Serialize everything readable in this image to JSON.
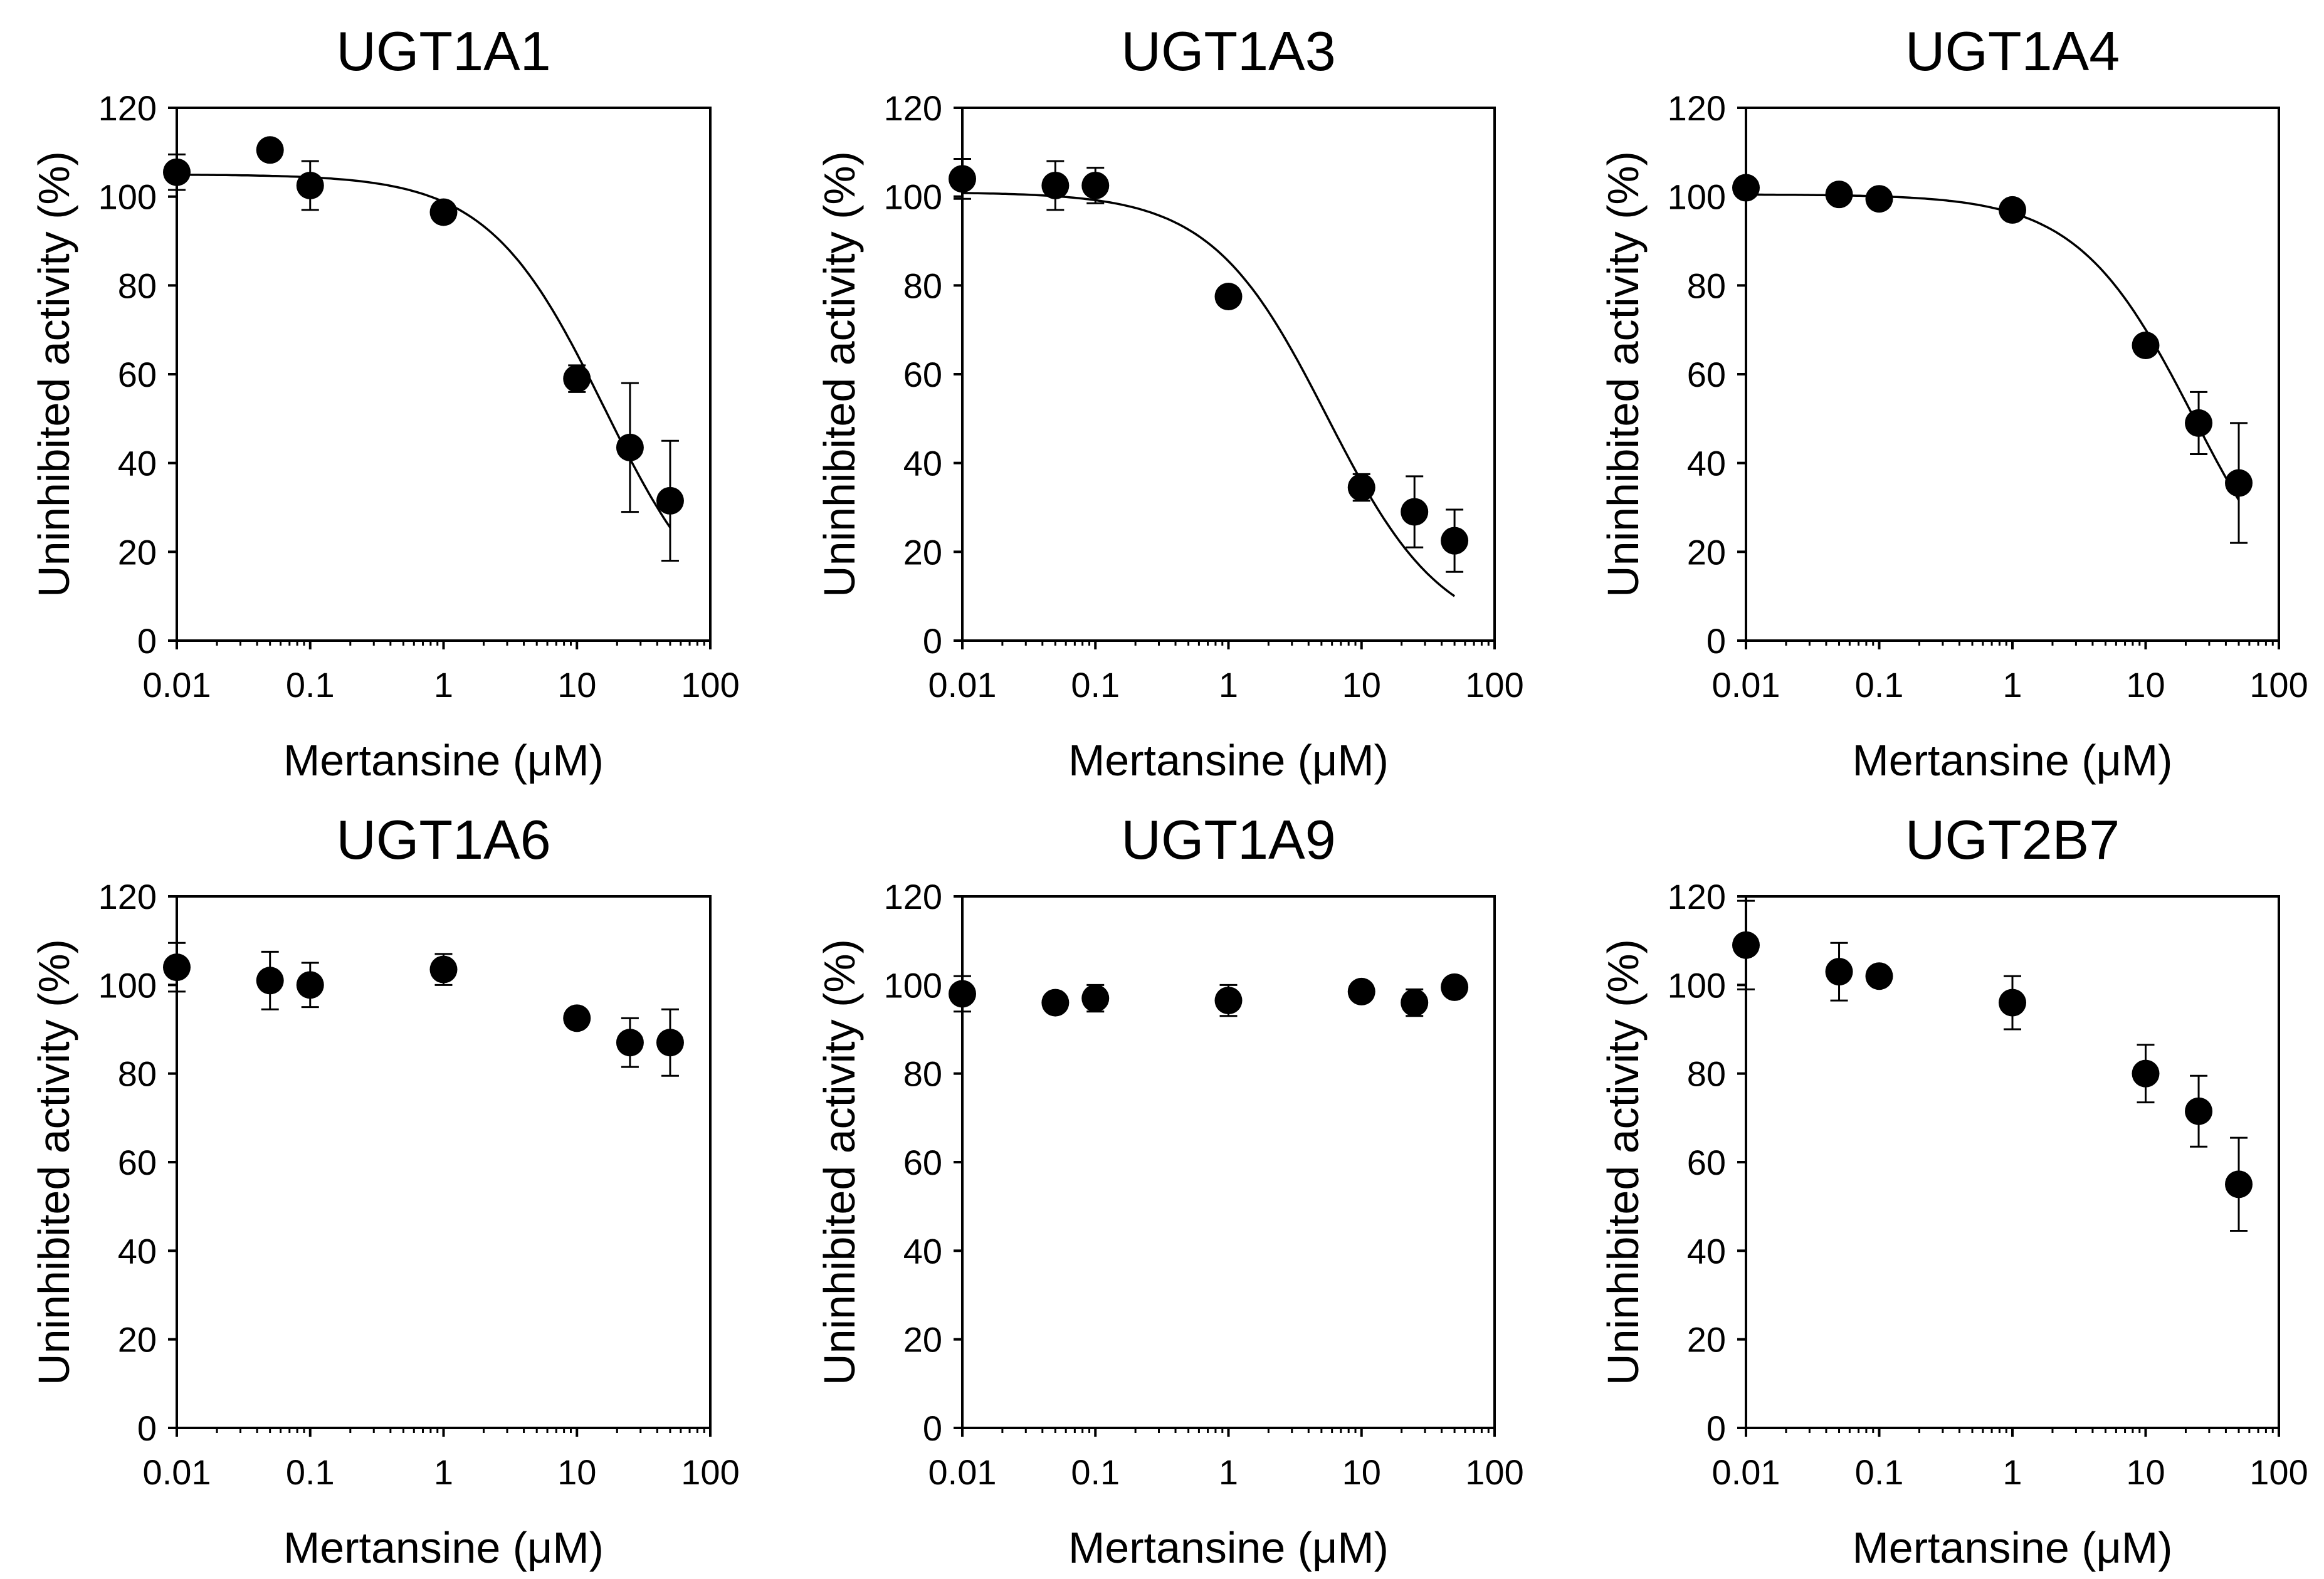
{
  "chart_data": [
    {
      "type": "scatter",
      "title": "UGT1A1",
      "xlabel": "Mertansine (μM)",
      "ylabel": "Uninhibited activity (%)",
      "x_scale": "log",
      "xlim": [
        0.01,
        100
      ],
      "ylim": [
        0,
        120
      ],
      "x_ticks": [
        "0.01",
        "0.1",
        "1",
        "10",
        "100"
      ],
      "y_ticks": [
        "0",
        "20",
        "40",
        "60",
        "80",
        "100",
        "120"
      ],
      "grid": false,
      "x": [
        0.01,
        0.05,
        0.1,
        1,
        10,
        25,
        50
      ],
      "y": [
        105.5,
        110.5,
        102.5,
        96.5,
        59,
        43.5,
        31.5
      ],
      "error": [
        4,
        0,
        5.5,
        0,
        3,
        14.5,
        13.5
      ],
      "fit_curve": true,
      "fit": {
        "top": 105,
        "bottom": 0,
        "ic50": 16,
        "hill": 1
      }
    },
    {
      "type": "scatter",
      "title": "UGT1A3",
      "xlabel": "Mertansine (μM)",
      "ylabel": "Uninhibited activity (%)",
      "x_scale": "log",
      "xlim": [
        0.01,
        100
      ],
      "ylim": [
        0,
        120
      ],
      "x_ticks": [
        "0.01",
        "0.1",
        "1",
        "10",
        "100"
      ],
      "y_ticks": [
        "0",
        "20",
        "40",
        "60",
        "80",
        "100",
        "120"
      ],
      "grid": false,
      "x": [
        0.01,
        0.05,
        0.1,
        1,
        10,
        25,
        50
      ],
      "y": [
        104,
        102.5,
        102.5,
        77.5,
        34.5,
        29,
        22.5
      ],
      "error": [
        4.5,
        5.5,
        4,
        0,
        3,
        8,
        7
      ],
      "fit_curve": true,
      "fit": {
        "top": 101,
        "bottom": 0,
        "ic50": 5.5,
        "hill": 1
      }
    },
    {
      "type": "scatter",
      "title": "UGT1A4",
      "xlabel": "Mertansine (μM)",
      "ylabel": "Uninhibited activity (%)",
      "x_scale": "log",
      "xlim": [
        0.01,
        100
      ],
      "ylim": [
        0,
        120
      ],
      "x_ticks": [
        "0.01",
        "0.1",
        "1",
        "10",
        "100"
      ],
      "y_ticks": [
        "0",
        "20",
        "40",
        "60",
        "80",
        "100",
        "120"
      ],
      "grid": false,
      "x": [
        0.01,
        0.05,
        0.1,
        1,
        10,
        25,
        50
      ],
      "y": [
        102,
        100.5,
        99.5,
        97,
        66.5,
        49,
        35.5
      ],
      "error": [
        0,
        0,
        0,
        0,
        0,
        7,
        13.5
      ],
      "fit_curve": true,
      "fit": {
        "top": 100.5,
        "bottom": 0,
        "ic50": 23,
        "hill": 1
      }
    },
    {
      "type": "scatter",
      "title": "UGT1A6",
      "xlabel": "Mertansine (μM)",
      "ylabel": "Uninhibited activity (%)",
      "x_scale": "log",
      "xlim": [
        0.01,
        100
      ],
      "ylim": [
        0,
        120
      ],
      "x_ticks": [
        "0.01",
        "0.1",
        "1",
        "10",
        "100"
      ],
      "y_ticks": [
        "0",
        "20",
        "40",
        "60",
        "80",
        "100",
        "120"
      ],
      "grid": false,
      "x": [
        0.01,
        0.05,
        0.1,
        1,
        10,
        25,
        50
      ],
      "y": [
        104,
        101,
        100,
        103.5,
        92.5,
        87,
        87
      ],
      "error": [
        5.5,
        6.5,
        5,
        3.5,
        0,
        5.5,
        7.5
      ],
      "fit_curve": false
    },
    {
      "type": "scatter",
      "title": "UGT1A9",
      "xlabel": "Mertansine (μM)",
      "ylabel": "Uninhibited activity (%)",
      "x_scale": "log",
      "xlim": [
        0.01,
        100
      ],
      "ylim": [
        0,
        120
      ],
      "x_ticks": [
        "0.01",
        "0.1",
        "1",
        "10",
        "100"
      ],
      "y_ticks": [
        "0",
        "20",
        "40",
        "60",
        "80",
        "100",
        "120"
      ],
      "grid": false,
      "x": [
        0.01,
        0.05,
        0.1,
        1,
        10,
        25,
        50
      ],
      "y": [
        98,
        96,
        97,
        96.5,
        98.5,
        96,
        99.5
      ],
      "error": [
        4,
        0,
        3,
        3.5,
        0,
        3,
        0
      ],
      "fit_curve": false
    },
    {
      "type": "scatter",
      "title": "UGT2B7",
      "xlabel": "Mertansine (μM)",
      "ylabel": "Uninhibited activity (%)",
      "x_scale": "log",
      "xlim": [
        0.01,
        100
      ],
      "ylim": [
        0,
        120
      ],
      "x_ticks": [
        "0.01",
        "0.1",
        "1",
        "10",
        "100"
      ],
      "y_ticks": [
        "0",
        "20",
        "40",
        "60",
        "80",
        "100",
        "120"
      ],
      "grid": false,
      "x": [
        0.01,
        0.05,
        0.1,
        1,
        10,
        25,
        50
      ],
      "y": [
        109,
        103,
        102,
        96,
        80,
        71.5,
        55
      ],
      "error": [
        10,
        6.5,
        0,
        6,
        6.5,
        8,
        10.5
      ],
      "fit_curve": false
    }
  ]
}
